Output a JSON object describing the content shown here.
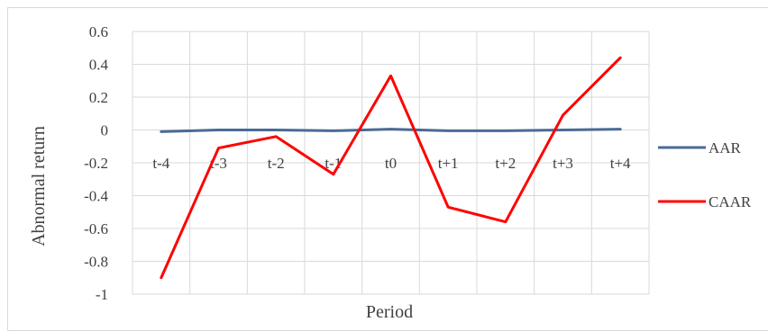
{
  "chart_data": {
    "type": "line",
    "categories": [
      "t-4",
      "t-3",
      "t-2",
      "t-1",
      "t0",
      "t+1",
      "t+2",
      "t+3",
      "t+4"
    ],
    "series": [
      {
        "name": "AAR",
        "color": "#4a6a94",
        "values": [
          -0.01,
          0.0,
          0.0,
          -0.005,
          0.005,
          -0.005,
          -0.005,
          0.0,
          0.005
        ]
      },
      {
        "name": "CAAR",
        "color": "#ff0000",
        "values": [
          -0.9,
          -0.11,
          -0.04,
          -0.27,
          0.33,
          -0.47,
          -0.56,
          0.09,
          0.44
        ]
      }
    ],
    "y_ticks": [
      "0.6",
      "0.4",
      "0.2",
      "0",
      "-0.2",
      "-0.4",
      "-0.6",
      "-0.8",
      "-1"
    ],
    "ylim": [
      -1,
      0.6
    ],
    "xlabel": "Period",
    "ylabel": "Abnormal return",
    "grid": true,
    "legend_position": "right"
  }
}
